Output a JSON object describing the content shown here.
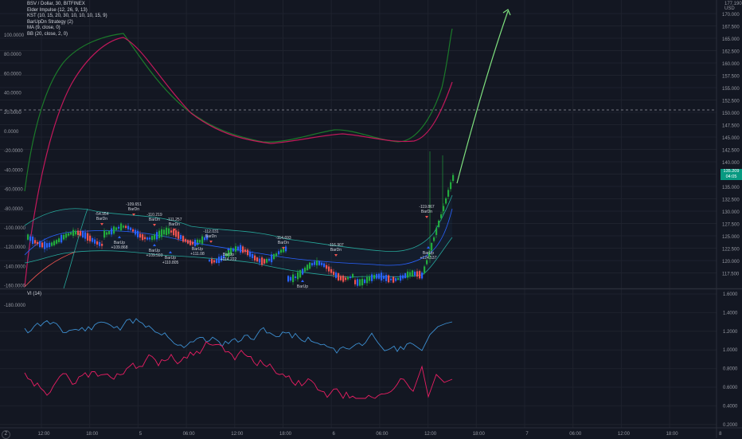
{
  "legend": {
    "title": "BSV / Dollar, 30, BITFINEX",
    "indicators": [
      "Elder Impulse (12, 26, 9, 13)",
      "KST (10, 15, 20, 30, 10, 10, 10, 15, 9)",
      "BarUpDn Strategy (2)",
      "MA (9, close, 0)",
      "BB (20, close, 2, 0)"
    ]
  },
  "vi_legend": "VI (14)",
  "timezone_button": "Z",
  "price_tag": {
    "price": "135.209",
    "countdown": "04:05"
  },
  "price_axis": {
    "top_label": "177.190\nUSD",
    "labels": [
      "170.000",
      "167.500",
      "165.000",
      "162.500",
      "160.000",
      "157.500",
      "155.000",
      "152.500",
      "150.000",
      "147.500",
      "145.000",
      "142.500",
      "140.000",
      "137.500",
      "135.000",
      "132.500",
      "130.000",
      "127.500",
      "125.000",
      "122.500",
      "120.000",
      "117.500"
    ]
  },
  "kst_axis": {
    "labels": [
      "100.0000",
      "80.0000",
      "60.0000",
      "40.0000",
      "20.0000",
      "0.0000",
      "-20.0000",
      "-40.0000",
      "-60.0000",
      "-80.0000",
      "-100.0000",
      "-120.0000",
      "-140.0000",
      "-160.0000",
      "-180.0000"
    ]
  },
  "vi_axis": {
    "labels": [
      "1.6000",
      "1.4000",
      "1.2000",
      "1.0000",
      "0.8000",
      "0.6000",
      "0.4000",
      "0.2000"
    ]
  },
  "time_axis": {
    "labels": [
      "12:00",
      "18:00",
      "5",
      "06:00",
      "12:00",
      "18:00",
      "6",
      "06:00",
      "12:00",
      "18:00",
      "7",
      "06:00",
      "12:00",
      "18:00",
      "8"
    ]
  },
  "annotations": [
    {
      "text": "-54.954",
      "sub": "BarDn"
    },
    {
      "text": "-109.651",
      "sub": "BarDn"
    },
    {
      "text": "-110.219",
      "sub": "BarDn"
    },
    {
      "text": "-111.257",
      "sub": "BarDn"
    },
    {
      "text": "-112.031",
      "sub": "BarDn"
    },
    {
      "text": "-114.693",
      "sub": "BarDn"
    },
    {
      "text": "-116.907",
      "sub": "BarDn"
    },
    {
      "text": "-119.867",
      "sub": "BarDn"
    },
    {
      "text": "BarUp",
      "sub": "+109.868"
    },
    {
      "text": "BarUp",
      "sub": "+109.593"
    },
    {
      "text": "BarUp",
      "sub": "+110.805"
    },
    {
      "text": "BarUp",
      "sub": "+111.08"
    },
    {
      "text": "BarUp",
      "sub": "+114.222"
    },
    {
      "text": "BarUp",
      "sub": ""
    },
    {
      "text": "BarUp",
      "sub": "+124.537"
    }
  ],
  "colors": {
    "background": "#131722",
    "grid": "#1e222d",
    "bull": "#26a69a",
    "bear": "#ef5350",
    "elder_green": "#22ab3d",
    "elder_blue": "#2962ff",
    "kst": "#1b7a2a",
    "kst_signal": "#c2185b",
    "vi_plus": "#3d8fd1",
    "vi_minus": "#e91e63",
    "projection": "#7ee07e",
    "price_tag": "#089981"
  }
}
